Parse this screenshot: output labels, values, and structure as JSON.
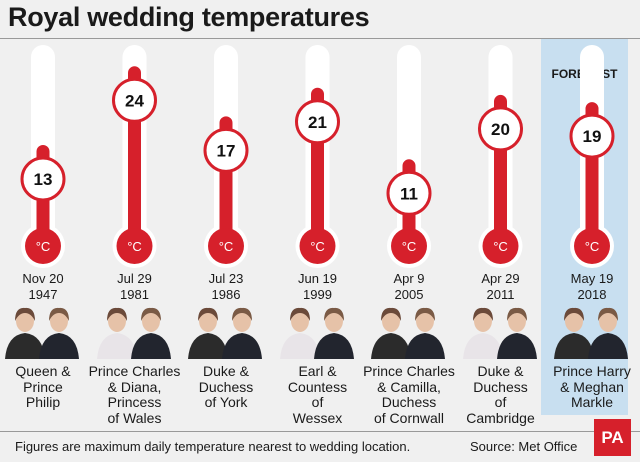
{
  "title": "Royal wedding temperatures",
  "forecast_label": "FORECAST",
  "footnote": "Figures are maximum daily temperature nearest to wedding location.",
  "source": "Source: Met Office",
  "logo_text": "PA",
  "unit": "°C",
  "colors": {
    "fill": "#d6202b",
    "tube": "#ffffff",
    "forecast_band": "#c8dff0",
    "background": "#f0f0f0"
  },
  "chart_data": {
    "type": "bar",
    "title": "Royal wedding temperatures",
    "categories": [
      "Nov 20 1947",
      "Jul 29 1981",
      "Jul 23 1986",
      "Jun 19 1999",
      "Apr 9 2005",
      "Apr 29 2011",
      "May 19 2018"
    ],
    "values": [
      13,
      24,
      17,
      21,
      11,
      20,
      19
    ],
    "unit": "°C",
    "ylim": [
      0,
      26
    ],
    "forecast": [
      false,
      false,
      false,
      false,
      false,
      false,
      true
    ]
  },
  "weddings": [
    {
      "date": [
        "Nov 20",
        "1947"
      ],
      "couple": [
        "Queen &",
        "Prince",
        "Philip"
      ]
    },
    {
      "date": [
        "Jul 29",
        "1981"
      ],
      "couple": [
        "Prince Charles",
        "& Diana,",
        "Princess",
        "of Wales"
      ]
    },
    {
      "date": [
        "Jul 23",
        "1986"
      ],
      "couple": [
        "Duke &",
        "Duchess",
        "of York"
      ]
    },
    {
      "date": [
        "Jun 19",
        "1999"
      ],
      "couple": [
        "Earl &",
        "Countess",
        "of",
        "Wessex"
      ]
    },
    {
      "date": [
        "Apr 9",
        "2005"
      ],
      "couple": [
        "Prince Charles",
        "& Camilla,",
        "Duchess",
        "of Cornwall"
      ]
    },
    {
      "date": [
        "Apr 29",
        "2011"
      ],
      "couple": [
        "Duke &",
        "Duchess",
        "of",
        "Cambridge"
      ]
    },
    {
      "date": [
        "May 19",
        "2018"
      ],
      "couple": [
        "Prince Harry",
        "& Meghan",
        "Markle"
      ]
    }
  ]
}
